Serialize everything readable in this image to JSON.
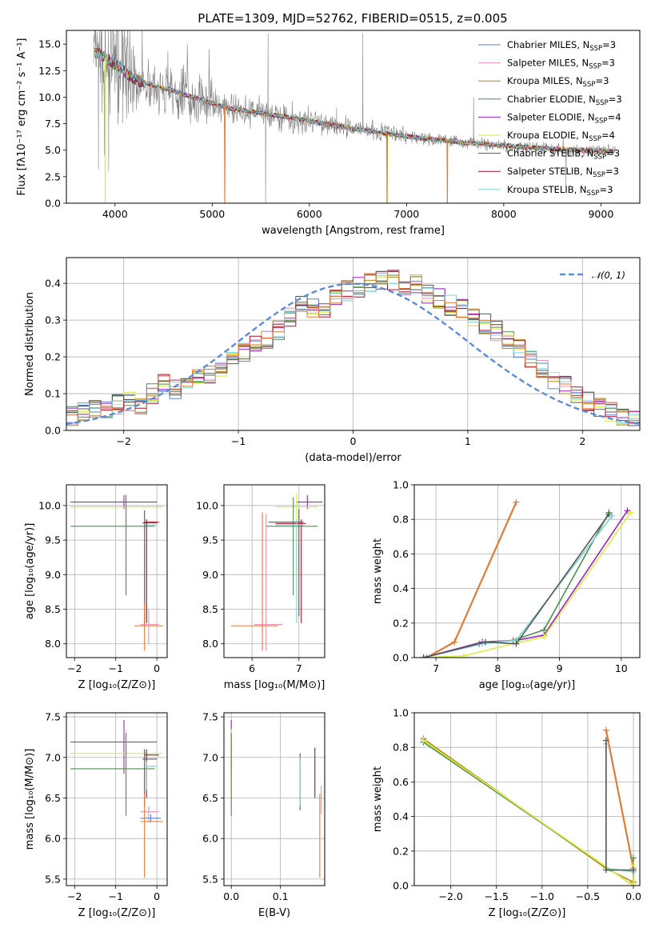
{
  "figure": {
    "title": "PLATE=1309, MJD=52762, FIBERID=0515, z=0.005"
  },
  "colors": {
    "chabrier_miles": "#5b7fd6",
    "salpeter_miles": "#e990b3",
    "kroupa_miles": "#b8860b",
    "chabrier_elodie": "#4c8f4c",
    "salpeter_elodie": "#9b22c4",
    "kroupa_elodie": "#d9ee45",
    "chabrier_stelib": "#555555",
    "salpeter_stelib": "#b0102a",
    "kroupa_stelib": "#7fd4d4",
    "observed": "#808080",
    "normal": "#5b8bd9",
    "orange": "#e07b39"
  },
  "legend": {
    "entries": [
      {
        "label": "Chabrier MILES, N",
        "sub": "SSP",
        "suffix": "=3",
        "color_key": "chabrier_miles"
      },
      {
        "label": "Salpeter MILES, N",
        "sub": "SSP",
        "suffix": "=3",
        "color_key": "salpeter_miles"
      },
      {
        "label": "Kroupa MILES, N",
        "sub": "SSP",
        "suffix": "=3",
        "color_key": "kroupa_miles"
      },
      {
        "label": "Chabrier ELODIE, N",
        "sub": "SSP",
        "suffix": "=3",
        "color_key": "chabrier_elodie"
      },
      {
        "label": "Salpeter ELODIE, N",
        "sub": "SSP",
        "suffix": "=4",
        "color_key": "salpeter_elodie"
      },
      {
        "label": "Kroupa ELODIE, N",
        "sub": "SSP",
        "suffix": "=4",
        "color_key": "kroupa_elodie"
      },
      {
        "label": "Chabrier STELIB, N",
        "sub": "SSP",
        "suffix": "=3",
        "color_key": "chabrier_stelib"
      },
      {
        "label": "Salpeter STELIB, N",
        "sub": "SSP",
        "suffix": "=3",
        "color_key": "salpeter_stelib"
      },
      {
        "label": "Kroupa STELIB, N",
        "sub": "SSP",
        "suffix": "=3",
        "color_key": "kroupa_stelib"
      }
    ]
  },
  "chart_data": [
    {
      "id": "spectrum",
      "type": "line",
      "xlabel": "wavelength [Angstrom, rest frame]",
      "ylabel": "Flux [fλ10⁻¹⁷ erg cm⁻² s⁻¹ A⁻¹]",
      "xlim": [
        3500,
        9400
      ],
      "ylim": [
        0,
        16.3
      ],
      "xticks": [
        4000,
        5000,
        6000,
        7000,
        8000,
        9000
      ],
      "yticks": [
        0.0,
        2.5,
        5.0,
        7.5,
        10.0,
        12.5,
        15.0
      ],
      "continuum": {
        "x": [
          3780,
          3850,
          3950,
          4050,
          4200,
          4400,
          4600,
          4800,
          5000,
          5200,
          5500,
          5800,
          6100,
          6400,
          6700,
          7000,
          7300,
          7600,
          7900,
          8200,
          8500,
          8800,
          9100
        ],
        "y": [
          14.3,
          14.0,
          13.4,
          12.8,
          11.7,
          11.1,
          10.6,
          10.0,
          9.4,
          8.9,
          8.5,
          8.1,
          7.6,
          7.1,
          6.7,
          6.3,
          6.0,
          5.7,
          5.5,
          5.3,
          5.1,
          5.0,
          4.9
        ]
      }
    },
    {
      "id": "residuals",
      "type": "histogram",
      "xlabel": "(data-model)/error",
      "ylabel": "Normed distribution",
      "xlim": [
        -2.5,
        2.5
      ],
      "ylim": [
        0,
        0.47
      ],
      "xticks": [
        -2,
        -1,
        0,
        1,
        2
      ],
      "yticks": [
        0.0,
        0.1,
        0.2,
        0.3,
        0.4
      ],
      "legend_label": "𝒩(0, 1)",
      "bin_edges_start": -2.5,
      "bin_width": 0.1,
      "histogram_values": [
        0.04,
        0.05,
        0.06,
        0.06,
        0.07,
        0.08,
        0.07,
        0.1,
        0.13,
        0.11,
        0.13,
        0.14,
        0.15,
        0.17,
        0.19,
        0.21,
        0.23,
        0.25,
        0.27,
        0.31,
        0.34,
        0.33,
        0.33,
        0.36,
        0.38,
        0.39,
        0.4,
        0.41,
        0.41,
        0.39,
        0.4,
        0.37,
        0.36,
        0.34,
        0.33,
        0.31,
        0.29,
        0.27,
        0.25,
        0.22,
        0.19,
        0.17,
        0.14,
        0.12,
        0.1,
        0.08,
        0.06,
        0.05,
        0.04,
        0.03
      ]
    },
    {
      "id": "age-vs-Z",
      "type": "errorbar",
      "xlabel": "Z [log₁₀(Z/Z⊙)]",
      "ylabel": "age  [log₁₀(age/yr)]",
      "xlim": [
        -2.2,
        0.25
      ],
      "ylim": [
        7.8,
        10.3
      ],
      "xticks": [
        -2,
        -1,
        0
      ],
      "yticks": [
        8.0,
        8.5,
        9.0,
        9.5,
        10.0
      ]
    },
    {
      "id": "age-vs-mass",
      "type": "errorbar",
      "xlabel": "mass [log₁₀(M/M⊙)]",
      "xlim": [
        5.4,
        7.55
      ],
      "ylim": [
        7.8,
        10.3
      ],
      "xticks": [
        6,
        7
      ],
      "yticks": [
        8.0,
        8.5,
        9.0,
        9.5,
        10.0
      ]
    },
    {
      "id": "weight-vs-age",
      "type": "line",
      "xlabel": "age  [log₁₀(age/yr)]",
      "ylabel": "mass weight",
      "xlim": [
        6.65,
        10.3
      ],
      "ylim": [
        0,
        1
      ],
      "xticks": [
        7,
        8,
        9,
        10
      ],
      "yticks": [
        0.0,
        0.2,
        0.4,
        0.6,
        0.8,
        1.0
      ],
      "series": [
        {
          "color_key": "orange",
          "x": [
            6.85,
            7.3,
            8.3
          ],
          "y": [
            0.0,
            0.09,
            0.9
          ]
        },
        {
          "color_key": "salpeter_elodie",
          "x": [
            6.8,
            7.75,
            8.3,
            8.75,
            10.1
          ],
          "y": [
            0.0,
            0.09,
            0.1,
            0.13,
            0.85
          ]
        },
        {
          "color_key": "kroupa_elodie",
          "x": [
            6.8,
            7.45,
            8.25,
            8.75,
            10.15
          ],
          "y": [
            0.0,
            0.01,
            0.08,
            0.12,
            0.84
          ]
        },
        {
          "color_key": "chabrier_elodie",
          "x": [
            6.8,
            7.7,
            8.25,
            8.75,
            9.8
          ],
          "y": [
            0.0,
            0.08,
            0.1,
            0.16,
            0.84
          ]
        },
        {
          "color_key": "kroupa_stelib",
          "x": [
            6.8,
            7.75,
            8.3,
            9.85
          ],
          "y": [
            0.0,
            0.08,
            0.1,
            0.82
          ]
        },
        {
          "color_key": "chabrier_stelib",
          "x": [
            6.8,
            7.8,
            8.3,
            9.8
          ],
          "y": [
            0.0,
            0.09,
            0.08,
            0.83
          ]
        }
      ]
    },
    {
      "id": "mass-vs-Z",
      "type": "errorbar",
      "xlabel": "Z [log₁₀(Z/Z⊙)]",
      "ylabel": "mass [log₁₀(M/M⊙)]",
      "xlim": [
        -2.2,
        0.25
      ],
      "ylim": [
        5.42,
        7.55
      ],
      "xticks": [
        -2,
        -1,
        0
      ],
      "yticks": [
        5.5,
        6.0,
        6.5,
        7.0,
        7.5
      ]
    },
    {
      "id": "mass-vs-ebv",
      "type": "errorbar",
      "xlabel": "E(B-V)",
      "xlim": [
        -0.015,
        0.19
      ],
      "ylim": [
        5.42,
        7.55
      ],
      "xticks": [
        0.0,
        0.1
      ],
      "yticks": [
        5.5,
        6.0,
        6.5,
        7.0,
        7.5
      ]
    },
    {
      "id": "weight-vs-Z",
      "type": "line",
      "xlabel": "Z [log₁₀(Z/Z⊙)]",
      "ylabel": "mass weight",
      "xlim": [
        -2.4,
        0.07
      ],
      "ylim": [
        0,
        1
      ],
      "xticks": [
        -2.0,
        -1.5,
        -1.0,
        -0.5,
        0.0
      ],
      "yticks": [
        0.0,
        0.2,
        0.4,
        0.6,
        0.8,
        1.0
      ],
      "series": [
        {
          "color_key": "orange",
          "x": [
            -0.3,
            0.0,
            0.0
          ],
          "y": [
            0.9,
            0.1,
            0.02
          ]
        },
        {
          "color_key": "kroupa_miles",
          "x": [
            -2.3,
            -0.3,
            0.0
          ],
          "y": [
            0.85,
            0.1,
            0.02
          ]
        },
        {
          "color_key": "chabrier_elodie",
          "x": [
            -2.3,
            0.0,
            0.0
          ],
          "y": [
            0.83,
            0.0,
            0.16
          ]
        },
        {
          "color_key": "kroupa_elodie",
          "x": [
            -2.3,
            0.0,
            0.0
          ],
          "y": [
            0.84,
            0.0,
            0.12
          ]
        },
        {
          "color_key": "kroupa_stelib",
          "x": [
            -0.3,
            -0.3,
            0.0
          ],
          "y": [
            0.82,
            0.1,
            0.08
          ]
        },
        {
          "color_key": "chabrier_stelib",
          "x": [
            -0.3,
            -0.3,
            0.0
          ],
          "y": [
            0.84,
            0.09,
            0.09
          ]
        }
      ]
    }
  ]
}
